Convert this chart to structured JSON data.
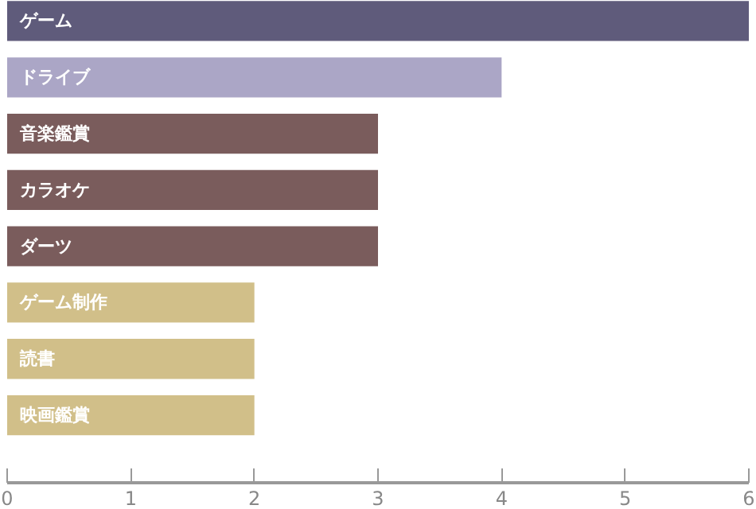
{
  "chart_data": {
    "type": "bar",
    "orientation": "horizontal",
    "categories": [
      "ゲーム",
      "ドライブ",
      "音楽鑑賞",
      "カラオケ",
      "ダーツ",
      "ゲーム制作",
      "読書",
      "映画鑑賞"
    ],
    "values": [
      6,
      4,
      3,
      3,
      3,
      2,
      2,
      2
    ],
    "colors": [
      "#5f5b7b",
      "#aba6c6",
      "#7a5c5c",
      "#7a5c5c",
      "#7a5c5c",
      "#d1bf89",
      "#d1bf89",
      "#d1bf89"
    ],
    "xlim": [
      0,
      6
    ],
    "xticks": [
      0,
      1,
      2,
      3,
      4,
      5,
      6
    ],
    "grid": false,
    "tick_labels": "x"
  }
}
